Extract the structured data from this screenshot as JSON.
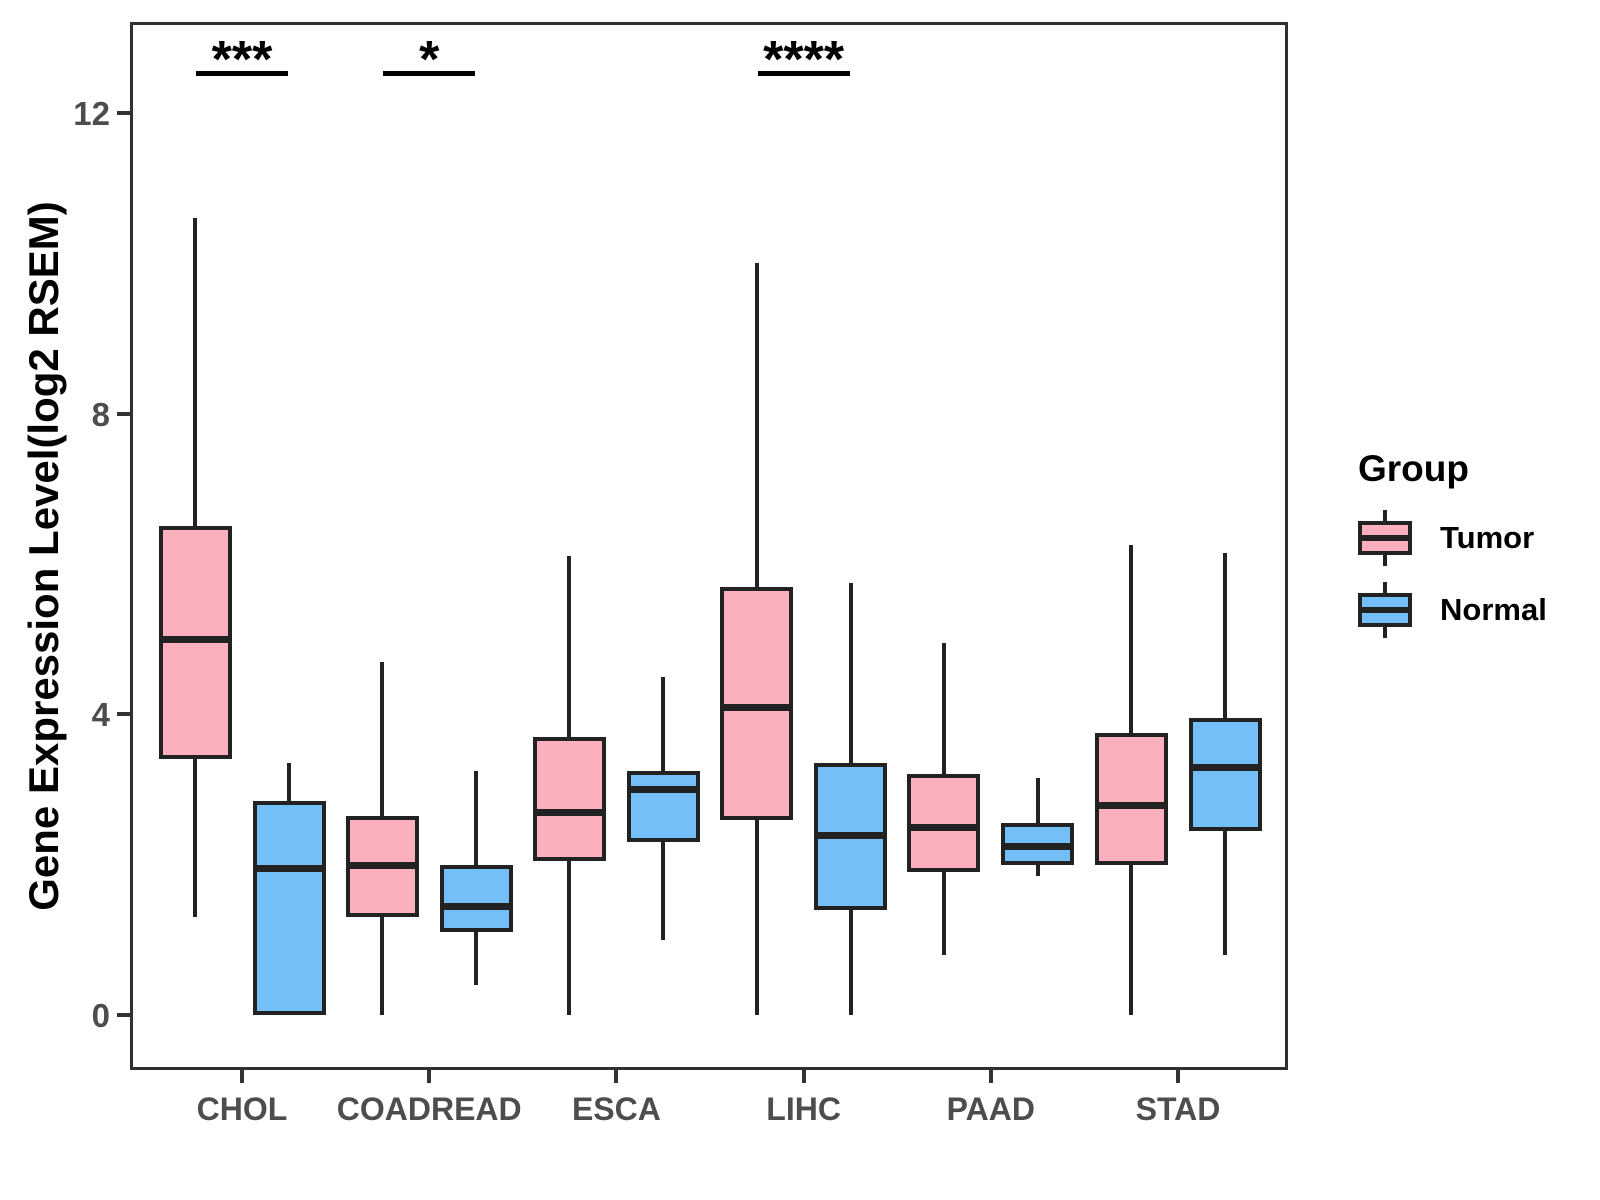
{
  "figure": {
    "background": "#ffffff",
    "y_axis": {
      "title": "Gene Expression Level(log2 RSEM)",
      "ticks": [
        0,
        4,
        8,
        12
      ]
    },
    "x_axis": {
      "categories": [
        "CHOL",
        "COADREAD",
        "ESCA",
        "LIHC",
        "PAAD",
        "STAD"
      ]
    },
    "legend": {
      "title": "Group",
      "entries": [
        {
          "label": "Tumor",
          "color": "#FCB0BD"
        },
        {
          "label": "Normal",
          "color": "#74BFF7"
        }
      ]
    },
    "colors": {
      "tumor_fill": "#FCB0BD",
      "normal_fill": "#74BFF7",
      "line": "#222222",
      "axis_text": "#4d4d4d",
      "panel_border": "#303030"
    }
  },
  "chart_data": {
    "type": "boxplot",
    "title": "",
    "xlabel": "",
    "ylabel": "Gene Expression Level(log2 RSEM)",
    "categories": [
      "CHOL",
      "COADREAD",
      "ESCA",
      "LIHC",
      "PAAD",
      "STAD"
    ],
    "y_ticks": [
      0,
      4,
      8,
      12
    ],
    "ylim": [
      -0.7,
      13.2
    ],
    "grid": false,
    "legend_position": "right",
    "series": [
      {
        "name": "Tumor",
        "color": "#FCB0BD",
        "boxes": [
          {
            "min": 1.3,
            "q1": 3.4,
            "median": 5.0,
            "q3": 6.5,
            "max": 10.6
          },
          {
            "min": 0.0,
            "q1": 1.3,
            "median": 2.0,
            "q3": 2.65,
            "max": 4.7
          },
          {
            "min": 0.0,
            "q1": 2.05,
            "median": 2.7,
            "q3": 3.7,
            "max": 6.1
          },
          {
            "min": 0.0,
            "q1": 2.6,
            "median": 4.1,
            "q3": 5.7,
            "max": 10.0
          },
          {
            "min": 0.8,
            "q1": 1.9,
            "median": 2.5,
            "q3": 3.2,
            "max": 4.95
          },
          {
            "min": 0.0,
            "q1": 2.0,
            "median": 2.8,
            "q3": 3.75,
            "max": 6.25
          }
        ]
      },
      {
        "name": "Normal",
        "color": "#74BFF7",
        "boxes": [
          {
            "min": 0.0,
            "q1": 0.0,
            "median": 1.95,
            "q3": 2.85,
            "max": 3.35
          },
          {
            "min": 0.4,
            "q1": 1.1,
            "median": 1.45,
            "q3": 2.0,
            "max": 3.25
          },
          {
            "min": 1.0,
            "q1": 2.3,
            "median": 3.0,
            "q3": 3.25,
            "max": 4.5
          },
          {
            "min": 0.0,
            "q1": 1.4,
            "median": 2.4,
            "q3": 3.35,
            "max": 5.75
          },
          {
            "min": 1.85,
            "q1": 2.0,
            "median": 2.25,
            "q3": 2.55,
            "max": 3.15
          },
          {
            "min": 0.8,
            "q1": 2.45,
            "median": 3.3,
            "q3": 3.95,
            "max": 6.15
          }
        ]
      }
    ],
    "significance": [
      {
        "category": "CHOL",
        "label": "***"
      },
      {
        "category": "COADREAD",
        "label": "*"
      },
      {
        "category": "LIHC",
        "label": "****"
      }
    ]
  }
}
